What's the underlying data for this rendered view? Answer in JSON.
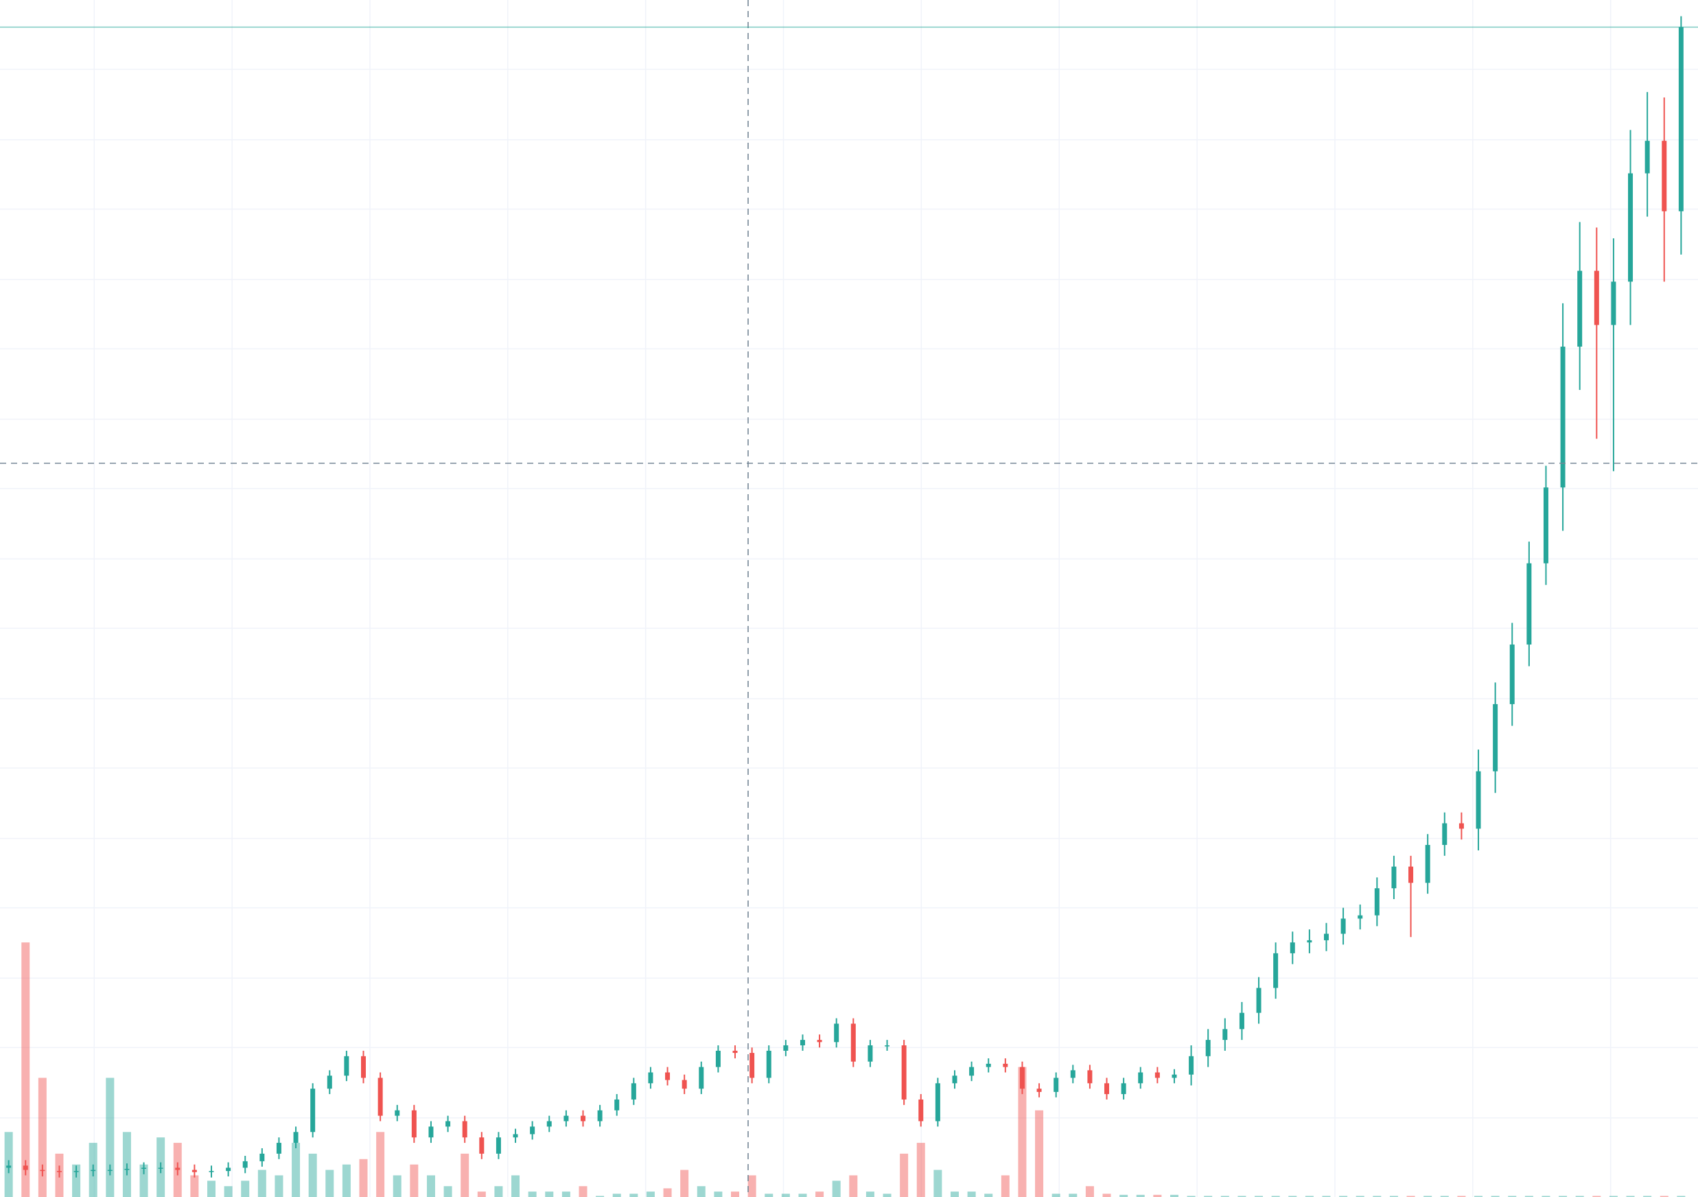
{
  "chart_data": {
    "type": "candlestick",
    "ylim": [
      0,
      1105
    ],
    "ygrid": [
      73,
      138,
      202,
      267,
      331,
      396,
      460,
      525,
      589,
      654,
      718,
      783,
      847,
      912,
      976,
      1041
    ],
    "vlim": [
      0,
      1105
    ],
    "grid": true,
    "up_color": "#26a69a",
    "down_color": "#ef5350",
    "series": {
      "open": [
        27,
        29,
        25,
        24,
        23,
        24,
        25,
        25,
        26,
        27,
        27,
        25,
        23,
        24,
        27,
        33,
        40,
        50,
        60,
        100,
        112,
        130,
        110,
        75,
        80,
        55,
        65,
        70,
        55,
        40,
        55,
        58,
        65,
        70,
        75,
        70,
        80,
        90,
        105,
        115,
        108,
        100,
        120,
        135,
        133,
        110,
        135,
        140,
        145,
        143,
        160,
        125,
        140,
        140,
        90,
        70,
        105,
        112,
        120,
        123,
        120,
        100,
        97,
        110,
        117,
        105,
        95,
        105,
        115,
        110,
        113,
        130,
        145,
        155,
        170,
        193,
        225,
        235,
        237,
        243,
        257,
        260,
        285,
        305,
        290,
        325,
        345,
        340,
        393,
        455,
        510,
        585,
        655,
        785,
        855,
        805,
        845,
        945,
        975,
        910
      ],
      "high": [
        34,
        34,
        30,
        29,
        29,
        30,
        30,
        31,
        32,
        32,
        32,
        30,
        29,
        32,
        38,
        45,
        55,
        65,
        105,
        117,
        135,
        135,
        115,
        85,
        85,
        70,
        75,
        75,
        60,
        60,
        63,
        70,
        75,
        80,
        80,
        85,
        95,
        110,
        120,
        120,
        113,
        125,
        140,
        140,
        138,
        140,
        145,
        150,
        150,
        165,
        165,
        145,
        145,
        145,
        95,
        110,
        117,
        125,
        128,
        128,
        125,
        105,
        115,
        122,
        122,
        110,
        110,
        120,
        120,
        118,
        140,
        155,
        165,
        180,
        203,
        235,
        245,
        247,
        253,
        267,
        270,
        295,
        315,
        315,
        335,
        355,
        355,
        413,
        475,
        530,
        605,
        675,
        825,
        900,
        895,
        885,
        985,
        1020,
        1015,
        1090
      ],
      "low": [
        22,
        20,
        19,
        18,
        18,
        19,
        20,
        20,
        21,
        22,
        20,
        18,
        18,
        19,
        22,
        28,
        35,
        45,
        55,
        95,
        107,
        105,
        70,
        70,
        50,
        50,
        60,
        50,
        35,
        35,
        50,
        53,
        60,
        65,
        65,
        65,
        75,
        85,
        100,
        103,
        95,
        95,
        115,
        128,
        105,
        105,
        130,
        135,
        138,
        138,
        120,
        120,
        135,
        85,
        65,
        65,
        100,
        107,
        115,
        115,
        95,
        92,
        92,
        105,
        100,
        90,
        90,
        100,
        105,
        105,
        103,
        120,
        135,
        145,
        160,
        183,
        215,
        225,
        227,
        233,
        247,
        250,
        275,
        240,
        280,
        315,
        330,
        320,
        373,
        435,
        490,
        565,
        615,
        745,
        700,
        670,
        805,
        905,
        845,
        870
      ],
      "close": [
        29,
        25,
        24,
        23,
        24,
        25,
        25,
        26,
        27,
        27,
        25,
        23,
        24,
        27,
        33,
        40,
        50,
        60,
        100,
        112,
        130,
        110,
        75,
        80,
        55,
        65,
        70,
        55,
        40,
        55,
        58,
        65,
        70,
        75,
        70,
        80,
        90,
        105,
        115,
        108,
        100,
        120,
        135,
        133,
        110,
        135,
        140,
        145,
        143,
        160,
        125,
        140,
        140,
        90,
        70,
        105,
        112,
        120,
        123,
        120,
        100,
        97,
        110,
        117,
        105,
        95,
        105,
        115,
        110,
        113,
        130,
        145,
        155,
        170,
        193,
        225,
        235,
        237,
        243,
        257,
        260,
        285,
        305,
        290,
        325,
        345,
        340,
        393,
        455,
        510,
        585,
        655,
        785,
        855,
        805,
        845,
        945,
        975,
        910,
        1080
      ],
      "volume": [
        60,
        235,
        110,
        40,
        30,
        50,
        110,
        60,
        30,
        55,
        50,
        20,
        15,
        10,
        15,
        25,
        20,
        50,
        40,
        25,
        30,
        35,
        60,
        20,
        30,
        20,
        10,
        40,
        5,
        10,
        20,
        5,
        5,
        5,
        10,
        1,
        3,
        3,
        5,
        8,
        25,
        10,
        5,
        5,
        20,
        3,
        3,
        3,
        5,
        15,
        20,
        5,
        3,
        40,
        50,
        25,
        5,
        5,
        3,
        20,
        120,
        80,
        3,
        3,
        10,
        3,
        2,
        2,
        2,
        2,
        1,
        1,
        1,
        1,
        1,
        1,
        1,
        1,
        1,
        1,
        1,
        1,
        1,
        1,
        1,
        1,
        1,
        1,
        1,
        1,
        1,
        1,
        1,
        1,
        1,
        1,
        1,
        1,
        1,
        1
      ]
    }
  }
}
